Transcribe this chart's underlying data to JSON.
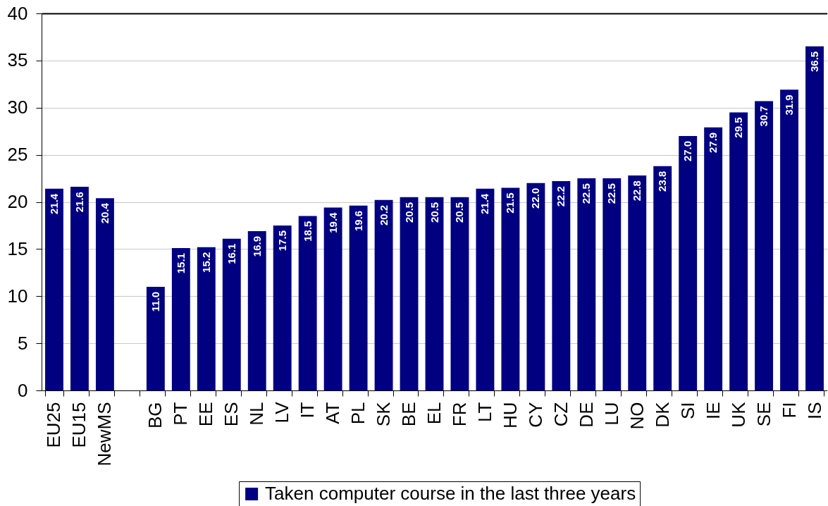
{
  "chart_data": {
    "type": "bar",
    "categories": [
      "EU25",
      "EU15",
      "NewMS",
      null,
      "BG",
      "PT",
      "EE",
      "ES",
      "NL",
      "LV",
      "IT",
      "AT",
      "PL",
      "SK",
      "BE",
      "EL",
      "FR",
      "LT",
      "HU",
      "CY",
      "CZ",
      "DE",
      "LU",
      "NO",
      "DK",
      "SI",
      "IE",
      "UK",
      "SE",
      "FI",
      "IS"
    ],
    "series": [
      {
        "name": "Taken computer course in the last three years",
        "color": "#000080",
        "values": [
          21.4,
          21.6,
          20.4,
          null,
          11.0,
          15.1,
          15.2,
          16.1,
          16.9,
          17.5,
          18.5,
          19.4,
          19.6,
          20.2,
          20.5,
          20.5,
          20.5,
          21.4,
          21.5,
          22.0,
          22.2,
          22.5,
          22.5,
          22.8,
          23.8,
          27.0,
          27.9,
          29.5,
          30.7,
          31.9,
          36.5
        ],
        "value_labels": [
          "21.4",
          "21.6",
          "20.4",
          null,
          "11.0",
          "15.1",
          "15.2",
          "16.1",
          "16.9",
          "17.5",
          "18.5",
          "19.4",
          "19.6",
          "20.2",
          "20.5",
          "20.5",
          "20.5",
          "21.4",
          "21.5",
          "22.0",
          "22.2",
          "22.5",
          "22.5",
          "22.8",
          "23.8",
          "27.0",
          "27.9",
          "29.5",
          "30.7",
          "31.9",
          "36.5"
        ]
      }
    ],
    "ylim": [
      0,
      40
    ],
    "yticks": [
      0,
      5,
      10,
      15,
      20,
      25,
      30,
      35,
      40
    ],
    "grid": "y",
    "legend": "bottom"
  }
}
